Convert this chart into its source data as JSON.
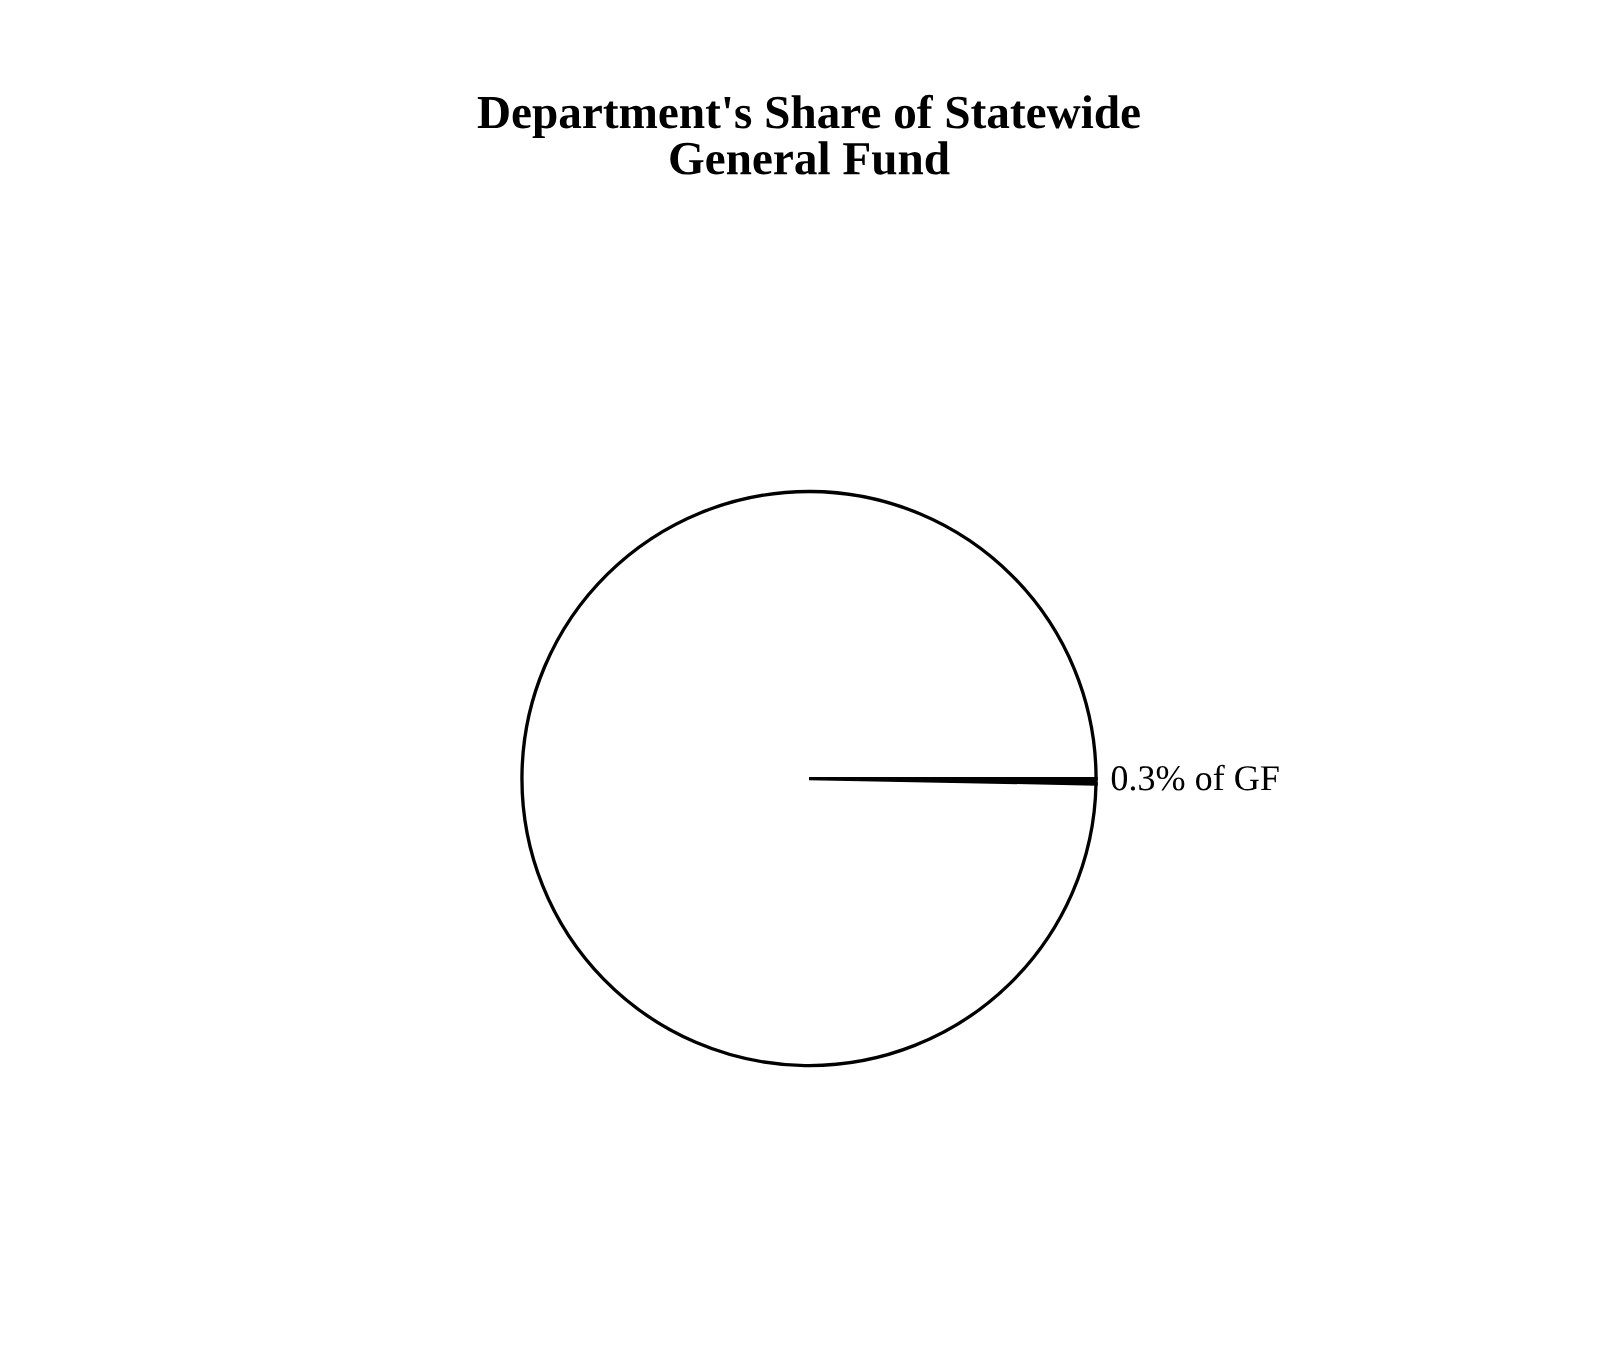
{
  "chart_data": {
    "type": "pie",
    "title": "Department's Share of Statewide\nGeneral Fund",
    "categories": [
      null,
      null
    ],
    "values": [
      0.3,
      99.7
    ],
    "colors": [
      "#000000",
      "#ffffff"
    ],
    "value_labels": [
      "0.3% of GF",
      null
    ]
  }
}
